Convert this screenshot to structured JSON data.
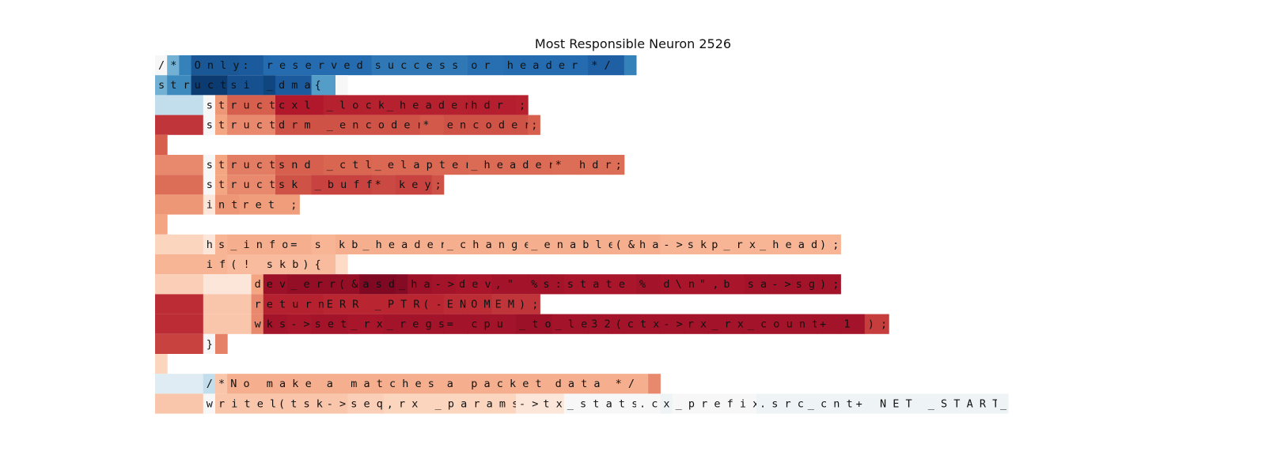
{
  "chart_data": {
    "type": "heatmap",
    "title": "Most Responsible Neuron 2526",
    "value_range": [
      -1,
      1
    ],
    "colormap": "RdBu_r",
    "rows": [
      {
        "tokens": [
          "/",
          "*",
          " ",
          "Only",
          " :",
          " reserved",
          " success",
          " or",
          " header",
          " */",
          "\n"
        ],
        "values": [
          0.0,
          -0.35,
          -0.6,
          -0.82,
          -0.8,
          -0.72,
          -0.65,
          -0.7,
          -0.72,
          -0.78,
          -0.6
        ]
      },
      {
        "tokens": [
          "s",
          "tr",
          "uct",
          " si",
          "_",
          "dma",
          " {",
          "\n"
        ],
        "values": [
          -0.35,
          -0.55,
          -0.95,
          -0.85,
          -0.9,
          -0.8,
          -0.45,
          0.0
        ]
      },
      {
        "tokens": [
          "    ",
          "s",
          "t",
          "ruct",
          " cxl",
          "_lock",
          "_header",
          " hdr",
          ";"
        ],
        "values": [
          -0.12,
          0.0,
          0.3,
          0.5,
          0.75,
          0.72,
          0.72,
          0.73,
          0.72
        ]
      },
      {
        "tokens": [
          "    ",
          "s",
          "t",
          "ruct",
          " drm",
          "_encoder",
          " *",
          "encoder",
          ";"
        ],
        "values": [
          0.65,
          0.0,
          0.25,
          0.35,
          0.55,
          0.55,
          0.52,
          0.55,
          0.5
        ]
      },
      {
        "tokens": [
          "\n"
        ],
        "values": [
          0.5
        ]
      },
      {
        "tokens": [
          "    ",
          "s",
          "t",
          "ruct",
          " snd",
          "_ctl",
          "_elapter",
          "_header",
          " *",
          "hdr",
          ";"
        ],
        "values": [
          0.35,
          0.0,
          0.25,
          0.4,
          0.5,
          0.48,
          0.47,
          0.46,
          0.45,
          0.45,
          0.45
        ]
      },
      {
        "tokens": [
          "    ",
          "s",
          "t",
          "ruct",
          " sk",
          "_buff",
          " *",
          "key",
          ";"
        ],
        "values": [
          0.45,
          0.0,
          0.25,
          0.35,
          0.55,
          0.6,
          0.58,
          0.6,
          0.55
        ]
      },
      {
        "tokens": [
          "    ",
          "i",
          "nt",
          " ret",
          ";"
        ],
        "values": [
          0.3,
          0.05,
          0.3,
          0.28,
          0.28
        ]
      },
      {
        "tokens": [
          "\n"
        ],
        "values": [
          0.25
        ]
      },
      {
        "tokens": [
          "    ",
          "h",
          "s",
          "_info",
          " =",
          " s",
          "kb",
          "_header",
          "_change",
          "_enable",
          "(&",
          "ha",
          "->",
          "sk",
          "p",
          "_rx",
          "_head",
          ");"
        ],
        "values": [
          0.1,
          0.05,
          0.2,
          0.22,
          0.22,
          0.2,
          0.22,
          0.22,
          0.22,
          0.22,
          0.22,
          0.22,
          0.2,
          0.2,
          0.2,
          0.2,
          0.2,
          0.2
        ]
      },
      {
        "tokens": [
          "    ",
          "if",
          " (!",
          "skb",
          ")",
          " {",
          "\n"
        ],
        "values": [
          0.2,
          0.2,
          0.18,
          0.18,
          0.18,
          0.18,
          0.08
        ]
      },
      {
        "tokens": [
          "    ",
          "    ",
          "d",
          "ev",
          "_err",
          "(&",
          "asd",
          "_",
          "ha",
          "->",
          "dev",
          ",",
          " \"",
          "%",
          "s",
          ":",
          " state",
          " %",
          "d",
          "\\n",
          "\",",
          " b",
          "sa",
          "->",
          "sg",
          ");"
        ],
        "values": [
          0.12,
          0.05,
          0.25,
          0.82,
          0.85,
          0.85,
          0.92,
          0.9,
          0.82,
          0.8,
          0.78,
          0.8,
          0.8,
          0.8,
          0.8,
          0.8,
          0.78,
          0.8,
          0.78,
          0.78,
          0.78,
          0.78,
          0.8,
          0.8,
          0.8,
          0.8
        ]
      },
      {
        "tokens": [
          "    ",
          "    ",
          "r",
          "eturn",
          " ERR",
          "_PTR",
          "(-",
          "EN",
          "OM",
          "EM",
          ");"
        ],
        "values": [
          0.68,
          0.15,
          0.35,
          0.72,
          0.7,
          0.7,
          0.7,
          0.68,
          0.68,
          0.65,
          0.65
        ]
      },
      {
        "tokens": [
          "    ",
          "    ",
          "w",
          "ks",
          "->",
          "set",
          "_rx",
          "_regs",
          " =",
          " cpu",
          "_to",
          "_le",
          "32",
          "(",
          "ctx",
          "->",
          "rx",
          "_rx",
          "_count",
          " +",
          " 1",
          ");"
        ],
        "values": [
          0.68,
          0.15,
          0.35,
          0.8,
          0.78,
          0.8,
          0.78,
          0.8,
          0.8,
          0.8,
          0.82,
          0.8,
          0.8,
          0.8,
          0.8,
          0.8,
          0.8,
          0.8,
          0.8,
          0.8,
          0.8,
          0.62
        ]
      },
      {
        "tokens": [
          "    ",
          "}",
          "\n"
        ],
        "values": [
          0.6,
          0.0,
          0.38
        ]
      },
      {
        "tokens": [
          "\n"
        ],
        "values": [
          0.1
        ]
      },
      {
        "tokens": [
          "    ",
          "/",
          "*",
          " No",
          " make",
          " a",
          " matches",
          " a",
          " packet",
          " data",
          " */",
          "\n"
        ],
        "values": [
          -0.05,
          -0.12,
          0.15,
          0.22,
          0.22,
          0.22,
          0.22,
          0.22,
          0.22,
          0.22,
          0.22,
          0.35
        ]
      },
      {
        "tokens": [
          "    ",
          "w",
          "ritel",
          "(",
          "tsk",
          "->",
          "seq",
          ",",
          " rx",
          "_params",
          "->",
          "tx",
          "_stats",
          ".",
          "c",
          "x",
          "_prefix",
          ".",
          "src",
          "_cnt",
          " +",
          " NET",
          "_START",
          "_"
        ],
        "values": [
          0.15,
          0.0,
          0.15,
          0.15,
          0.15,
          0.15,
          0.12,
          0.1,
          0.1,
          0.1,
          0.05,
          0.05,
          0.0,
          0.0,
          0.0,
          -0.02,
          0.0,
          -0.02,
          -0.02,
          -0.02,
          -0.02,
          -0.02,
          -0.02,
          -0.02
        ]
      }
    ]
  }
}
